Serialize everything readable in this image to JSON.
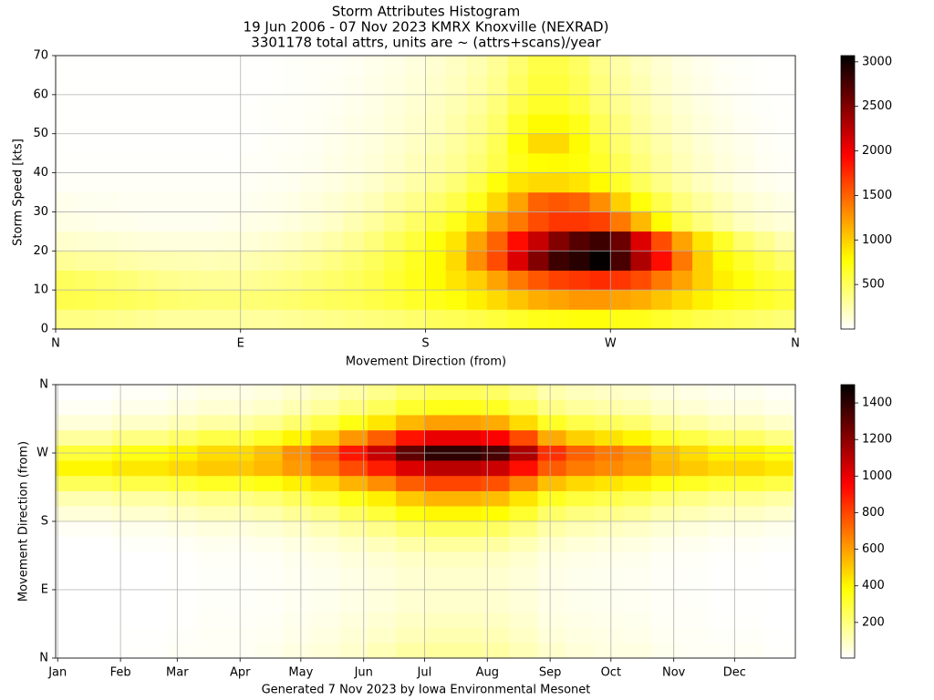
{
  "footer": "Generated 7 Nov 2023 by Iowa Environmental Mesonet",
  "chart_data": [
    {
      "type": "heatmap",
      "title": [
        "Storm Attributes Histogram",
        "19 Jun 2006 - 07 Nov 2023 KMRX Knoxville (NEXRAD)",
        "3301178 total attrs, units are ~ (attrs+scans)/year"
      ],
      "xlabel": "Movement Direction (from)",
      "ylabel": "Storm Speed [kts]",
      "colormap": "hot_r",
      "grid": true,
      "xlim": [
        0,
        360
      ],
      "ylim": [
        0,
        70
      ],
      "zlim": [
        0,
        3070
      ],
      "xticks": [
        {
          "value": 0,
          "label": "N"
        },
        {
          "value": 90,
          "label": "E"
        },
        {
          "value": 180,
          "label": "S"
        },
        {
          "value": 270,
          "label": "W"
        },
        {
          "value": 360,
          "label": "N"
        }
      ],
      "yticks": [
        0,
        10,
        20,
        30,
        40,
        50,
        60,
        70
      ],
      "zticks": [
        500,
        1000,
        1500,
        2000,
        2500,
        3000
      ],
      "x_bins": [
        0,
        10,
        20,
        30,
        40,
        50,
        60,
        70,
        80,
        90,
        100,
        110,
        120,
        130,
        140,
        150,
        160,
        170,
        180,
        190,
        200,
        210,
        220,
        230,
        240,
        250,
        260,
        270,
        280,
        290,
        300,
        310,
        320,
        330,
        340,
        350,
        360
      ],
      "y_bins": [
        0,
        5,
        10,
        15,
        20,
        25,
        30,
        35,
        40,
        45,
        50,
        55,
        60,
        65,
        70
      ],
      "z": [
        [
          380,
          380,
          360,
          340,
          320,
          300,
          300,
          300,
          300,
          300,
          300,
          320,
          340,
          360,
          380,
          400,
          420,
          450,
          500,
          520,
          550,
          600,
          650,
          700,
          720,
          750,
          750,
          720,
          700,
          650,
          600,
          550,
          520,
          480,
          450,
          420
        ],
        [
          550,
          540,
          520,
          500,
          480,
          450,
          430,
          420,
          420,
          420,
          430,
          450,
          480,
          500,
          520,
          560,
          600,
          650,
          700,
          750,
          850,
          950,
          1050,
          1150,
          1200,
          1250,
          1250,
          1200,
          1150,
          1050,
          950,
          850,
          750,
          700,
          650,
          600
        ],
        [
          500,
          480,
          450,
          420,
          380,
          350,
          330,
          320,
          320,
          330,
          350,
          380,
          420,
          460,
          500,
          550,
          620,
          700,
          800,
          900,
          1000,
          1200,
          1400,
          1550,
          1650,
          1700,
          1750,
          1700,
          1600,
          1400,
          1200,
          1000,
          850,
          750,
          650,
          600
        ],
        [
          320,
          300,
          290,
          270,
          250,
          240,
          230,
          220,
          230,
          240,
          260,
          290,
          330,
          380,
          430,
          500,
          580,
          680,
          800,
          950,
          1300,
          1600,
          2100,
          2500,
          2800,
          2900,
          3050,
          2750,
          2300,
          1900,
          1400,
          1000,
          800,
          650,
          550,
          450
        ],
        [
          150,
          140,
          130,
          120,
          110,
          100,
          100,
          100,
          110,
          120,
          140,
          170,
          210,
          260,
          320,
          400,
          500,
          600,
          750,
          900,
          1200,
          1500,
          1900,
          2200,
          2500,
          2700,
          2800,
          2600,
          2100,
          1600,
          1200,
          900,
          650,
          450,
          350,
          250
        ],
        [
          80,
          70,
          60,
          60,
          50,
          50,
          50,
          50,
          60,
          70,
          80,
          100,
          130,
          170,
          230,
          300,
          380,
          470,
          580,
          700,
          900,
          1200,
          1400,
          1600,
          1700,
          1700,
          1650,
          1400,
          1100,
          800,
          550,
          400,
          300,
          200,
          150,
          120
        ],
        [
          60,
          50,
          50,
          40,
          40,
          40,
          40,
          40,
          40,
          50,
          60,
          80,
          100,
          130,
          170,
          220,
          290,
          360,
          450,
          550,
          700,
          950,
          1200,
          1500,
          1550,
          1500,
          1300,
          1000,
          750,
          550,
          400,
          300,
          220,
          150,
          110,
          80
        ],
        [
          20,
          20,
          20,
          20,
          20,
          20,
          20,
          20,
          20,
          30,
          40,
          50,
          70,
          90,
          120,
          160,
          210,
          270,
          340,
          420,
          550,
          750,
          900,
          950,
          950,
          900,
          800,
          650,
          500,
          380,
          280,
          200,
          140,
          90,
          60,
          40
        ],
        [
          10,
          10,
          10,
          10,
          10,
          10,
          10,
          10,
          10,
          20,
          30,
          40,
          50,
          70,
          90,
          120,
          160,
          210,
          270,
          330,
          420,
          550,
          700,
          780,
          800,
          750,
          650,
          520,
          400,
          300,
          220,
          160,
          110,
          70,
          40,
          20
        ],
        [
          5,
          5,
          5,
          5,
          5,
          5,
          5,
          5,
          5,
          10,
          20,
          30,
          40,
          60,
          80,
          100,
          140,
          180,
          230,
          290,
          380,
          520,
          750,
          950,
          950,
          800,
          600,
          450,
          350,
          260,
          190,
          130,
          90,
          60,
          30,
          15
        ],
        [
          5,
          5,
          5,
          5,
          5,
          5,
          5,
          5,
          5,
          10,
          15,
          25,
          35,
          50,
          70,
          90,
          120,
          160,
          200,
          260,
          340,
          460,
          650,
          800,
          800,
          700,
          520,
          400,
          300,
          220,
          160,
          110,
          70,
          40,
          20,
          10
        ],
        [
          5,
          5,
          5,
          5,
          5,
          5,
          5,
          5,
          5,
          10,
          15,
          20,
          30,
          40,
          60,
          80,
          110,
          140,
          180,
          230,
          300,
          400,
          550,
          650,
          650,
          580,
          440,
          340,
          260,
          190,
          130,
          90,
          60,
          30,
          15,
          10
        ],
        [
          5,
          5,
          5,
          5,
          5,
          5,
          5,
          5,
          5,
          5,
          10,
          15,
          25,
          35,
          50,
          70,
          90,
          120,
          160,
          200,
          260,
          350,
          480,
          600,
          600,
          520,
          400,
          300,
          230,
          160,
          110,
          70,
          40,
          20,
          10,
          5
        ],
        [
          5,
          5,
          5,
          5,
          5,
          5,
          5,
          5,
          5,
          5,
          10,
          15,
          20,
          30,
          40,
          60,
          80,
          100,
          140,
          180,
          240,
          320,
          440,
          560,
          560,
          480,
          360,
          270,
          200,
          140,
          90,
          60,
          30,
          15,
          10,
          5
        ]
      ]
    },
    {
      "type": "heatmap",
      "ylabel": "Movement Direction (from)",
      "colormap": "hot_r",
      "grid": true,
      "xlim": [
        0,
        365
      ],
      "ylim": [
        0,
        360
      ],
      "zlim": [
        5,
        1500
      ],
      "xticks": [
        {
          "value": 1,
          "label": "Jan"
        },
        {
          "value": 32,
          "label": "Feb"
        },
        {
          "value": 60,
          "label": "Mar"
        },
        {
          "value": 91,
          "label": "Apr"
        },
        {
          "value": 121,
          "label": "May"
        },
        {
          "value": 152,
          "label": "Jun"
        },
        {
          "value": 182,
          "label": "Jul"
        },
        {
          "value": 213,
          "label": "Aug"
        },
        {
          "value": 244,
          "label": "Sep"
        },
        {
          "value": 274,
          "label": "Oct"
        },
        {
          "value": 305,
          "label": "Nov"
        },
        {
          "value": 335,
          "label": "Dec"
        }
      ],
      "yticks": [
        {
          "value": 0,
          "label": "N"
        },
        {
          "value": 90,
          "label": "E"
        },
        {
          "value": 180,
          "label": "S"
        },
        {
          "value": 270,
          "label": "W"
        },
        {
          "value": 360,
          "label": "N"
        }
      ],
      "zticks": [
        200,
        400,
        600,
        800,
        1000,
        1200,
        1400
      ],
      "x_bins": [
        0,
        14,
        28,
        42,
        56,
        70,
        84,
        98,
        112,
        126,
        140,
        154,
        168,
        182,
        196,
        210,
        224,
        238,
        252,
        266,
        280,
        294,
        308,
        322,
        336,
        350,
        364
      ],
      "y_bins": [
        0,
        20,
        40,
        60,
        80,
        100,
        120,
        140,
        160,
        180,
        200,
        220,
        240,
        260,
        280,
        300,
        320,
        340,
        360
      ],
      "z": [
        [
          0,
          0,
          10,
          10,
          20,
          20,
          20,
          30,
          50,
          60,
          80,
          110,
          140,
          150,
          150,
          140,
          110,
          80,
          60,
          50,
          50,
          30,
          20,
          20,
          20,
          10
        ],
        [
          0,
          0,
          6,
          6,
          12,
          18,
          18,
          24,
          36,
          48,
          66,
          84,
          108,
          120,
          120,
          114,
          90,
          60,
          48,
          42,
          36,
          24,
          18,
          12,
          12,
          6
        ],
        [
          0,
          0,
          5,
          5,
          10,
          15,
          15,
          20,
          30,
          40,
          55,
          70,
          90,
          100,
          100,
          95,
          75,
          50,
          40,
          35,
          30,
          20,
          15,
          10,
          10,
          5
        ],
        [
          0,
          0,
          4,
          4,
          8,
          12,
          12,
          16,
          24,
          32,
          44,
          56,
          72,
          80,
          80,
          76,
          60,
          40,
          32,
          28,
          24,
          16,
          12,
          8,
          8,
          4
        ],
        [
          0,
          0,
          4,
          4,
          8,
          12,
          12,
          16,
          24,
          32,
          44,
          56,
          72,
          80,
          80,
          76,
          60,
          40,
          32,
          28,
          24,
          16,
          12,
          8,
          8,
          4
        ],
        [
          0,
          0,
          4,
          4,
          8,
          12,
          12,
          16,
          24,
          32,
          44,
          56,
          72,
          80,
          80,
          76,
          60,
          40,
          32,
          28,
          24,
          16,
          12,
          8,
          8,
          4
        ],
        [
          0,
          0,
          5,
          5,
          10,
          15,
          15,
          20,
          30,
          40,
          55,
          70,
          90,
          100,
          100,
          95,
          75,
          50,
          40,
          35,
          30,
          20,
          15,
          10,
          10,
          5
        ],
        [
          5,
          5,
          12,
          12,
          20,
          27,
          27,
          34,
          49,
          63,
          85,
          107,
          136,
          150,
          150,
          143,
          114,
          78,
          63,
          56,
          49,
          34,
          27,
          20,
          20,
          12
        ],
        [
          20,
          20,
          32,
          32,
          43,
          55,
          55,
          66,
          89,
          112,
          147,
          181,
          227,
          250,
          250,
          239,
          193,
          135,
          112,
          101,
          89,
          66,
          55,
          43,
          43,
          32
        ],
        [
          60,
          60,
          77,
          77,
          94,
          111,
          111,
          128,
          162,
          196,
          247,
          298,
          366,
          400,
          400,
          383,
          315,
          230,
          196,
          179,
          162,
          128,
          111,
          94,
          94,
          77
        ],
        [
          120,
          120,
          142,
          142,
          163,
          185,
          185,
          206,
          249,
          292,
          357,
          421,
          507,
          550,
          550,
          529,
          443,
          335,
          292,
          271,
          249,
          206,
          185,
          163,
          163,
          142
        ],
        [
          250,
          250,
          278,
          278,
          305,
          333,
          333,
          360,
          415,
          470,
          553,
          635,
          745,
          800,
          800,
          773,
          663,
          525,
          470,
          443,
          415,
          360,
          333,
          305,
          305,
          278
        ],
        [
          400,
          400,
          435,
          435,
          470,
          505,
          505,
          540,
          610,
          680,
          785,
          890,
          1030,
          1100,
          1100,
          1065,
          925,
          750,
          680,
          645,
          610,
          540,
          505,
          470,
          470,
          435
        ],
        [
          300,
          300,
          355,
          355,
          410,
          465,
          465,
          520,
          630,
          740,
          905,
          1070,
          1290,
          1400,
          1400,
          1345,
          1125,
          850,
          740,
          685,
          630,
          520,
          465,
          410,
          410,
          355
        ],
        [
          150,
          150,
          193,
          193,
          235,
          278,
          278,
          320,
          405,
          490,
          618,
          745,
          915,
          1000,
          1000,
          958,
          788,
          575,
          490,
          448,
          405,
          320,
          278,
          235,
          235,
          193
        ],
        [
          60,
          60,
          87,
          87,
          114,
          141,
          141,
          168,
          222,
          276,
          357,
          438,
          546,
          600,
          600,
          573,
          465,
          330,
          276,
          249,
          222,
          168,
          141,
          114,
          114,
          87
        ],
        [
          20,
          20,
          37,
          37,
          53,
          70,
          70,
          86,
          119,
          152,
          202,
          251,
          317,
          350,
          350,
          334,
          268,
          185,
          152,
          136,
          119,
          86,
          70,
          53,
          53,
          37
        ],
        [
          5,
          5,
          17,
          17,
          30,
          42,
          42,
          54,
          79,
          103,
          140,
          177,
          226,
          250,
          250,
          238,
          189,
          128,
          103,
          91,
          79,
          54,
          42,
          30,
          30,
          17
        ]
      ]
    }
  ]
}
